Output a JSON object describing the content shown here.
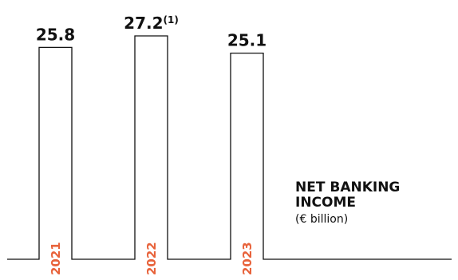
{
  "chart_data": {
    "type": "bar",
    "title": "NET BANKING INCOME",
    "subtitle": "(€ billion)",
    "categories": [
      "2021",
      "2022",
      "2023"
    ],
    "values": [
      25.8,
      27.2,
      25.1
    ],
    "value_labels": [
      "25.8",
      "27.2",
      "25.1"
    ],
    "footnotes": [
      "",
      "(1)",
      ""
    ],
    "ylim": [
      0,
      27.2
    ],
    "grid": false,
    "legend": "none",
    "colors": {
      "bar_outline": "#111111",
      "bar_fill": "#ffffff",
      "category_label": "#e8623a",
      "text": "#111111"
    }
  }
}
